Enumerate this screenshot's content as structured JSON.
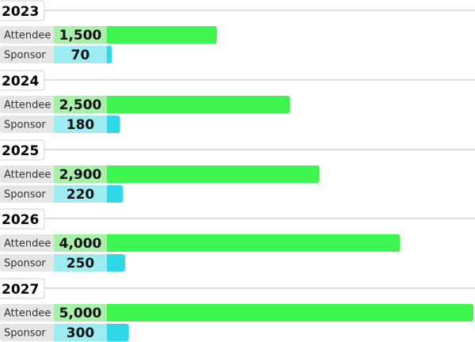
{
  "chart_data": {
    "type": "bar",
    "orientation": "horizontal",
    "categories": [
      "2023",
      "2024",
      "2025",
      "2026",
      "2027"
    ],
    "series": [
      {
        "name": "Attendee",
        "values": [
          1500,
          2500,
          2900,
          4000,
          5000
        ]
      },
      {
        "name": "Sponsor",
        "values": [
          70,
          180,
          220,
          250,
          300
        ]
      }
    ],
    "value_labels": {
      "Attendee": [
        "1,500",
        "2,500",
        "2,900",
        "4,000",
        "5,000"
      ],
      "Sponsor": [
        "70",
        "180",
        "220",
        "250",
        "300"
      ]
    },
    "colors": {
      "attendee_bar": "#3df54e",
      "attendee_label_bg": "#a6f0a9",
      "sponsor_bar": "#2ed8e6",
      "sponsor_label_bg": "#9eecf2",
      "row_label_bg": "#e6e6e6",
      "divider": "#bdbdbd"
    },
    "grid": false,
    "legend": "none"
  }
}
